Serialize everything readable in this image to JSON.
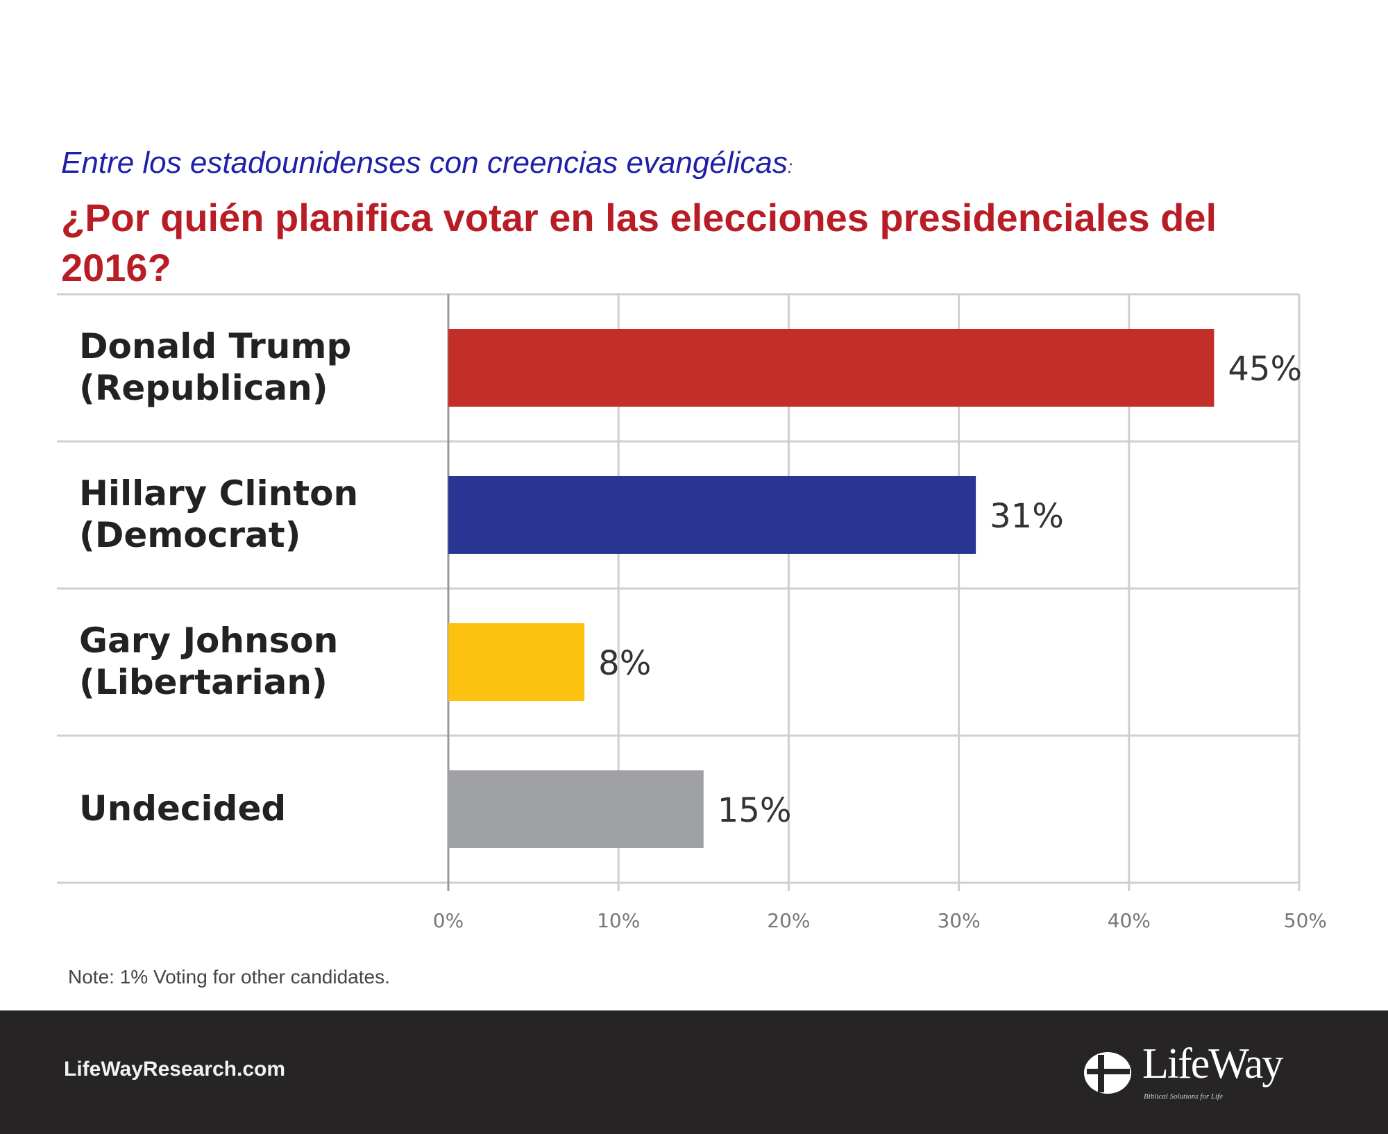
{
  "header": {
    "subtitle": "Entre los estadounidenses con creencias evangélicas",
    "subtitle_colon": ":",
    "title": "¿Por quién planifica votar en las elecciones presidenciales del 2016?"
  },
  "chart_data": {
    "type": "bar",
    "orientation": "horizontal",
    "categories": [
      [
        "Donald Trump",
        "(Republican)"
      ],
      [
        "Hillary Clinton",
        "(Democrat)"
      ],
      [
        "Gary Johnson",
        "(Libertarian)"
      ],
      [
        "Undecided"
      ]
    ],
    "values": [
      45,
      31,
      8,
      15
    ],
    "value_labels": [
      "45%",
      "31%",
      "8%",
      "15%"
    ],
    "colors": [
      "#c42e29",
      "#283592",
      "#fdc210",
      "#a0a1a4"
    ],
    "xlim": [
      0,
      50
    ],
    "xticks": [
      0,
      10,
      20,
      30,
      40,
      50
    ],
    "xtick_labels": [
      "0%",
      "10%",
      "20%",
      "30%",
      "40%",
      "50%"
    ],
    "grid": true
  },
  "note": "Note: 1% Voting for other candidates.",
  "footer": {
    "url": "LifeWayResearch.com",
    "logo_text": "LifeWay",
    "logo_tagline": "Biblical Solutions for Life"
  }
}
